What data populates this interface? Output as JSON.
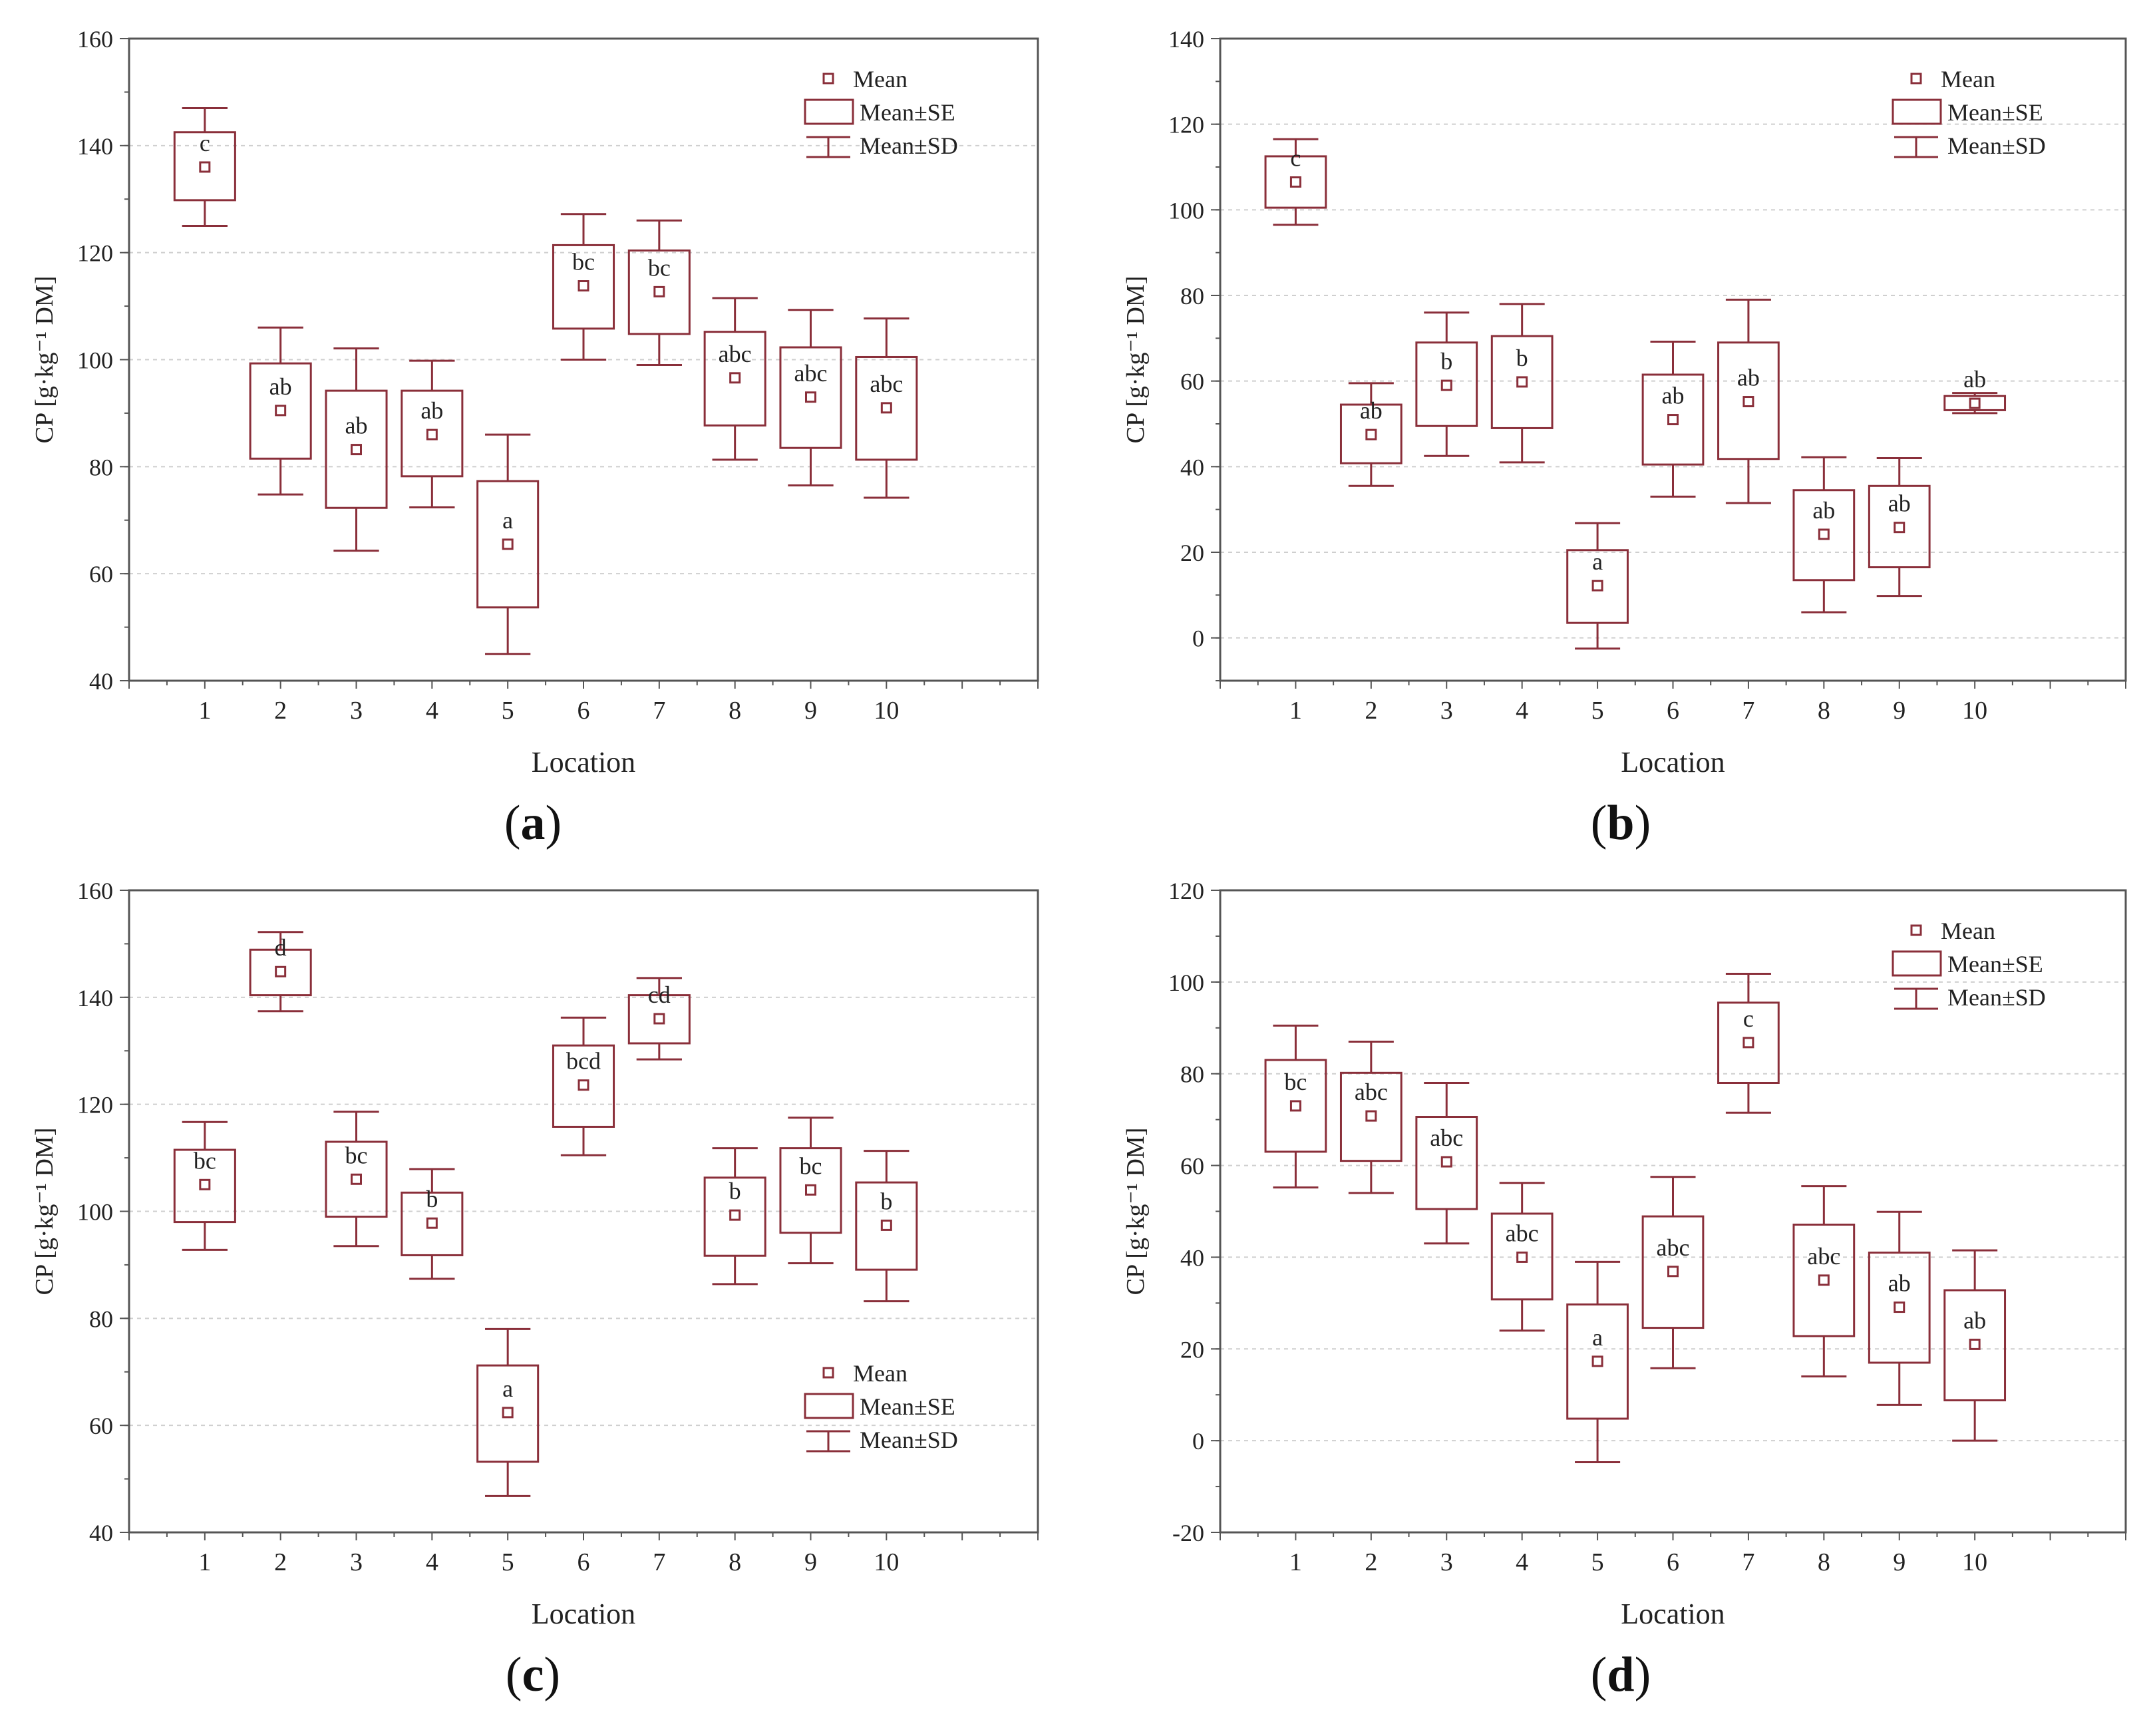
{
  "colors": {
    "box": "#8a2f3a",
    "axis": "#555555",
    "grid": "#cfcfcf",
    "text": "#222222"
  },
  "chart_data": [
    {
      "panel": "a",
      "type": "box",
      "caption_letter": "a",
      "xlabel": "Location",
      "ylabel": "CP [g·kg⁻¹ DM]",
      "ylim": [
        40,
        160
      ],
      "yticks": [
        40,
        60,
        80,
        100,
        120,
        140,
        160
      ],
      "grid": true,
      "legend_position": "top-right",
      "legend": {
        "mean": "Mean",
        "se": "Mean±SE",
        "sd": "Mean±SD"
      },
      "categories": [
        "1",
        "2",
        "3",
        "4",
        "5",
        "6",
        "7",
        "8",
        "9",
        "10"
      ],
      "mean": [
        136,
        90.5,
        83.2,
        86,
        65.5,
        113.8,
        112.7,
        96.6,
        93,
        91
      ],
      "se_low": [
        129.8,
        81.5,
        72.3,
        78.2,
        53.7,
        105.8,
        104.8,
        87.7,
        83.5,
        81.3
      ],
      "se_high": [
        142.5,
        99.3,
        94.2,
        94.2,
        77.3,
        121.4,
        120.4,
        105.2,
        102.3,
        100.5
      ],
      "sd_low": [
        125,
        74.8,
        64.3,
        72.4,
        45,
        100,
        99,
        81.3,
        76.5,
        74.2
      ],
      "sd_high": [
        147,
        106,
        102.1,
        99.8,
        86,
        127.2,
        126,
        111.5,
        109.3,
        107.7
      ],
      "letters": [
        "c",
        "ab",
        "ab",
        "ab",
        "a",
        "bc",
        "bc",
        "abc",
        "abc",
        "abc"
      ]
    },
    {
      "panel": "b",
      "type": "box",
      "caption_letter": "b",
      "xlabel": "Location",
      "ylabel": "CP [g·kg⁻¹ DM]",
      "ylim": [
        -10,
        140
      ],
      "yticks": [
        0,
        20,
        40,
        60,
        80,
        100,
        120,
        140
      ],
      "grid": true,
      "legend_position": "top-right",
      "legend": {
        "mean": "Mean",
        "se": "Mean±SE",
        "sd": "Mean±SD"
      },
      "categories": [
        "1",
        "2",
        "3",
        "4",
        "5",
        "6",
        "7",
        "8",
        "9",
        "10"
      ],
      "mean": [
        106.5,
        47.5,
        59,
        59.8,
        12.2,
        51,
        55.2,
        24.2,
        25.8,
        54.8
      ],
      "se_low": [
        100.5,
        40.8,
        49.5,
        49,
        3.5,
        40.5,
        41.8,
        13.5,
        16.5,
        53.2
      ],
      "se_high": [
        112.5,
        54.5,
        69,
        70.5,
        20.5,
        61.5,
        69,
        34.5,
        35.5,
        56.5
      ],
      "sd_low": [
        96.5,
        35.5,
        42.5,
        41,
        -2.5,
        33,
        31.5,
        6,
        9.8,
        52.5
      ],
      "sd_high": [
        116.5,
        59.5,
        76,
        78,
        26.8,
        69.2,
        79,
        42.2,
        42,
        57.2
      ],
      "letters": [
        "c",
        "ab",
        "b",
        "b",
        "a",
        "ab",
        "ab",
        "ab",
        "ab",
        "ab"
      ]
    },
    {
      "panel": "c",
      "type": "box",
      "caption_letter": "c",
      "xlabel": "Location",
      "ylabel": "CP [g·kg⁻¹ DM]",
      "ylim": [
        40,
        160
      ],
      "yticks": [
        40,
        60,
        80,
        100,
        120,
        140,
        160
      ],
      "grid": true,
      "legend_position": "bottom-right",
      "legend": {
        "mean": "Mean",
        "se": "Mean±SE",
        "sd": "Mean±SD"
      },
      "categories": [
        "1",
        "2",
        "3",
        "4",
        "5",
        "6",
        "7",
        "8",
        "9",
        "10"
      ],
      "mean": [
        105,
        144.8,
        106,
        97.8,
        62.4,
        123.6,
        136,
        99.3,
        104,
        97.4
      ],
      "se_low": [
        98,
        140.4,
        99,
        91.8,
        53.2,
        115.8,
        131.4,
        91.7,
        96,
        89.1
      ],
      "se_high": [
        111.5,
        148.9,
        113,
        103.5,
        71.2,
        131,
        140.4,
        106.3,
        111.8,
        105.4
      ],
      "sd_low": [
        92.8,
        137.4,
        93.5,
        87.4,
        46.8,
        110.5,
        128.4,
        86.4,
        90.3,
        83.2
      ],
      "sd_high": [
        116.7,
        152.2,
        118.6,
        107.9,
        78,
        136.2,
        143.6,
        111.8,
        117.5,
        111.3
      ],
      "letters": [
        "bc",
        "d",
        "bc",
        "b",
        "a",
        "bcd",
        "cd",
        "b",
        "bc",
        "b"
      ]
    },
    {
      "panel": "d",
      "type": "box",
      "caption_letter": "d",
      "xlabel": "Location",
      "ylabel": "CP [g·kg⁻¹ DM]",
      "ylim": [
        -20,
        120
      ],
      "yticks": [
        -20,
        0,
        20,
        40,
        60,
        80,
        100,
        120
      ],
      "grid": true,
      "legend_position": "top-right",
      "legend": {
        "mean": "Mean",
        "se": "Mean±SE",
        "sd": "Mean±SD"
      },
      "categories": [
        "1",
        "2",
        "3",
        "4",
        "5",
        "6",
        "7",
        "8",
        "9",
        "10"
      ],
      "mean": [
        73,
        70.8,
        60.8,
        40,
        17.3,
        36.9,
        86.8,
        35,
        29.1,
        21
      ],
      "se_low": [
        63,
        61,
        50.5,
        30.8,
        4.8,
        24.6,
        78,
        22.8,
        17,
        8.8
      ],
      "se_high": [
        83,
        80.2,
        70.6,
        49.5,
        29.7,
        48.9,
        95.5,
        47.1,
        41,
        32.8
      ],
      "sd_low": [
        55.2,
        54,
        43,
        24,
        -4.7,
        15.8,
        71.5,
        14,
        7.8,
        0
      ],
      "sd_high": [
        90.5,
        87,
        78,
        56.2,
        39,
        57.5,
        101.8,
        55.5,
        49.9,
        41.5
      ],
      "letters": [
        "bc",
        "abc",
        "abc",
        "abc",
        "a",
        "abc",
        "c",
        "abc",
        "ab",
        "ab"
      ]
    }
  ]
}
